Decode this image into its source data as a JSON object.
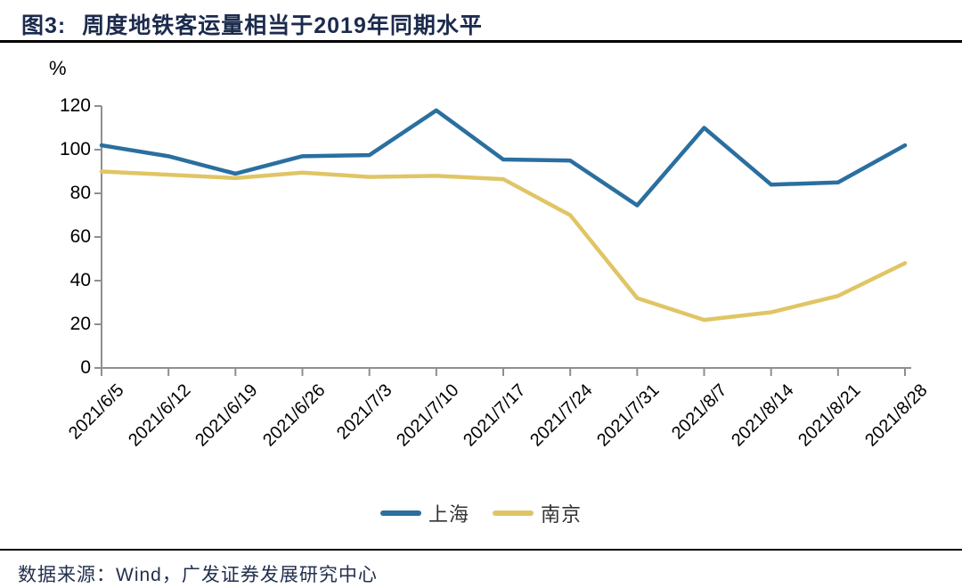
{
  "page": {
    "title_prefix": "图3:",
    "title": "周度地铁客运量相当于2019年同期水平",
    "source_note": "数据来源：Wind，广发证券发展研究中心"
  },
  "chart_data": {
    "type": "line",
    "title": "周度地铁客运量相当于2019年同期水平",
    "unit_label": "%",
    "categories": [
      "2021/6/5",
      "2021/6/12",
      "2021/6/19",
      "2021/6/26",
      "2021/7/3",
      "2021/7/10",
      "2021/7/17",
      "2021/7/24",
      "2021/7/31",
      "2021/8/7",
      "2021/8/14",
      "2021/8/21",
      "2021/8/28"
    ],
    "series": [
      {
        "name": "上海",
        "color": "#2a6f9f",
        "values": [
          102,
          97,
          89,
          97,
          97.5,
          118,
          95.5,
          95,
          74.5,
          110,
          84,
          85,
          102
        ]
      },
      {
        "name": "南京",
        "color": "#e0c565",
        "values": [
          90,
          88.5,
          87,
          89.5,
          87.5,
          88,
          86.5,
          70,
          32,
          22,
          25.5,
          33,
          48
        ]
      }
    ],
    "ylim": [
      0,
      120
    ],
    "yticks": [
      0,
      20,
      40,
      60,
      80,
      100,
      120
    ],
    "grid": false,
    "legend_position": "bottom",
    "axis_color": "#8f8f8f"
  }
}
